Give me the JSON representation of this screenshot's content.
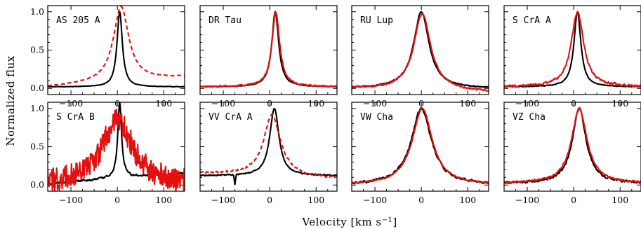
{
  "figure": {
    "ylabel": "Normalized flux",
    "xlabel_main": "Velocity [km s",
    "xlabel_sup": "−1",
    "xlabel_end": "]"
  },
  "colors": {
    "obs": "#000000",
    "model": "#e41010"
  },
  "chart_data": {
    "type": "line",
    "xlim": [
      -150,
      145
    ],
    "ylim": [
      -0.08,
      1.08
    ],
    "xticks": [
      -100,
      0,
      100
    ],
    "xtick_labels": [
      "−100",
      "0",
      "100"
    ],
    "yticks": [
      0.0,
      0.5,
      1.0
    ],
    "ytick_labels": [
      "0.0",
      "0.5",
      "1.0"
    ],
    "panels": [
      {
        "title": "AS 205 A",
        "obs": {
          "center": 5,
          "width": 7,
          "base": 0.02,
          "peak": 1.0,
          "wing": 0.0,
          "noise": 0.004,
          "absorption": 0,
          "dashed": false
        },
        "model": {
          "center": 8,
          "width": 20,
          "base": 0.02,
          "peak": 1.0,
          "wing": 0.13,
          "noise": 0.006,
          "absorption": 0,
          "dashed": true
        }
      },
      {
        "title": "DR Tau",
        "obs": {
          "center": 12,
          "width": 9,
          "base": 0.02,
          "peak": 1.0,
          "wing": 0.0,
          "noise": 0.006,
          "absorption": 0,
          "dashed": false
        },
        "model": {
          "center": 13,
          "width": 10,
          "base": 0.02,
          "peak": 1.0,
          "wing": 0.0,
          "noise": 0.018,
          "absorption": 0,
          "dashed": false
        }
      },
      {
        "title": "RU Lup",
        "obs": {
          "center": 0,
          "width": 20,
          "base": 0.0,
          "peak": 1.0,
          "wing": 0.0,
          "noise": 0.012,
          "absorption": 0,
          "dashed": false
        },
        "model": {
          "center": 2,
          "width": 22,
          "base": 0.0,
          "peak": 1.0,
          "wing": -0.05,
          "noise": 0.018,
          "absorption": 0,
          "dashed": false
        }
      },
      {
        "title": "S CrA A",
        "obs": {
          "center": 8,
          "width": 9,
          "base": 0.02,
          "peak": 1.0,
          "wing": 0.0,
          "noise": 0.008,
          "absorption": 0,
          "dashed": false
        },
        "model": {
          "center": 8,
          "width": 16,
          "base": 0.02,
          "peak": 1.0,
          "wing": 0.0,
          "noise": 0.025,
          "absorption": 0,
          "dashed": false
        }
      },
      {
        "title": "S CrA B",
        "obs": {
          "center": 5,
          "width": 5,
          "base": 0.02,
          "peak": 1.0,
          "wing": 0.14,
          "noise": 0.02,
          "absorption": 0,
          "dashed": false
        },
        "model": {
          "center": 0,
          "width": 40,
          "base": 0.0,
          "peak": 0.85,
          "wing": 0.0,
          "noise": 0.16,
          "absorption": 0,
          "dashed": false
        }
      },
      {
        "title": "VV CrA A",
        "obs": {
          "center": 10,
          "width": 12,
          "base": 0.12,
          "peak": 1.0,
          "wing": 0.0,
          "noise": 0.012,
          "absorption": -75,
          "dashed": false
        },
        "model": {
          "center": 5,
          "width": 22,
          "base": 0.15,
          "peak": 0.95,
          "wing": -0.07,
          "noise": 0.02,
          "absorption": 0,
          "dashed": true
        }
      },
      {
        "title": "VW Cha",
        "obs": {
          "center": 0,
          "width": 26,
          "base": 0.0,
          "peak": 1.0,
          "wing": 0.0,
          "noise": 0.025,
          "absorption": 0,
          "dashed": false
        },
        "model": {
          "center": 2,
          "width": 26,
          "base": 0.0,
          "peak": 1.0,
          "wing": 0.0,
          "noise": 0.012,
          "absorption": 0,
          "dashed": false
        }
      },
      {
        "title": "VZ Cha",
        "obs": {
          "center": 12,
          "width": 18,
          "base": 0.02,
          "peak": 1.0,
          "wing": 0.0,
          "noise": 0.025,
          "absorption": 0,
          "dashed": false
        },
        "model": {
          "center": 12,
          "width": 20,
          "base": 0.02,
          "peak": 1.0,
          "wing": 0.0,
          "noise": 0.02,
          "absorption": 0,
          "dashed": false
        }
      }
    ]
  }
}
